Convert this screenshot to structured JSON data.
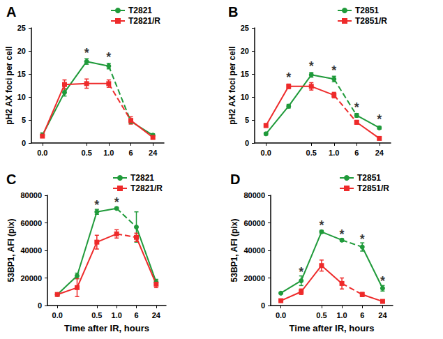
{
  "chart_data": [
    {
      "type": "line",
      "title": "A",
      "y_label": "pH2 AX foci per cell",
      "categories": [
        "0.0",
        null,
        "0.5",
        "1.0",
        "6",
        "24"
      ],
      "series": [
        {
          "name": "T2821",
          "color": "#1f9a3a",
          "marker": "circle",
          "line_style": "solid",
          "values": [
            1.7,
            11,
            17.7,
            16.7,
            4.7,
            1.7
          ],
          "errors": [
            0.5,
            0.8,
            0.6,
            0.6,
            0.5,
            0.3
          ]
        },
        {
          "name": "T2821/R",
          "color": "#ee2a2a",
          "marker": "square",
          "line_style": "solid",
          "values": [
            1.5,
            12.7,
            12.9,
            12.9,
            4.9,
            1.2
          ],
          "errors": [
            0.3,
            1.0,
            1.0,
            0.8,
            0.8,
            0.3
          ]
        }
      ],
      "ylim": [
        0,
        25
      ],
      "yticks": [
        0,
        5,
        10,
        15,
        20,
        25
      ],
      "grid": false,
      "legend": "upper right",
      "annotations": [
        {
          "text": "*",
          "index": 2,
          "y": 19.5
        },
        {
          "text": "*",
          "index": 3,
          "y": 18.6
        }
      ]
    },
    {
      "type": "line",
      "title": "B",
      "y_label": "pH2 AX foci per cell",
      "categories": [
        "0.0",
        null,
        "0.5",
        "1.0",
        "6",
        "24"
      ],
      "series": [
        {
          "name": "T2851",
          "color": "#1f9a3a",
          "marker": "circle",
          "line_style": "solid",
          "values": [
            2.0,
            8.0,
            14.8,
            13.9,
            6.0,
            3.3
          ],
          "errors": [
            0.3,
            0.4,
            0.5,
            0.6,
            0.4,
            0.3
          ]
        },
        {
          "name": "T2851/R",
          "color": "#ee2a2a",
          "marker": "square",
          "line_style": "solid",
          "values": [
            3.8,
            12.3,
            12.3,
            10.4,
            4.5,
            1.0
          ],
          "errors": [
            0.4,
            0.5,
            0.8,
            0.6,
            0.4,
            0.3
          ]
        }
      ],
      "ylim": [
        0,
        25
      ],
      "yticks": [
        0,
        5,
        10,
        15,
        20,
        25
      ],
      "grid": false,
      "legend": "upper right",
      "annotations": [
        {
          "text": "*",
          "index": 1,
          "y": 14.3
        },
        {
          "text": "*",
          "index": 2,
          "y": 16.6
        },
        {
          "text": "*",
          "index": 3,
          "y": 15.8
        },
        {
          "text": "*",
          "index": 4,
          "y": 7.7
        },
        {
          "text": "*",
          "index": 5,
          "y": 5.2
        }
      ]
    },
    {
      "type": "line",
      "title": "C",
      "y_label": "53BP1, AFI (pix)",
      "x_label": "Time after IR, hours",
      "categories": [
        "0.0",
        null,
        "0.5",
        "1.0",
        "6",
        "24"
      ],
      "series": [
        {
          "name": "T2821",
          "color": "#1f9a3a",
          "marker": "circle",
          "line_style": "solid",
          "values": [
            8000,
            21500,
            68000,
            70500,
            57000,
            17000
          ],
          "errors": [
            500,
            2000,
            1800,
            800,
            11000,
            2000
          ]
        },
        {
          "name": "T2821/R",
          "color": "#ee2a2a",
          "marker": "square",
          "line_style": "solid",
          "values": [
            8000,
            13000,
            46000,
            52000,
            49500,
            15500
          ],
          "errors": [
            500,
            6500,
            5000,
            3000,
            3000,
            2500
          ]
        }
      ],
      "ylim": [
        0,
        80000
      ],
      "yticks": [
        0,
        20000,
        40000,
        60000,
        80000
      ],
      "grid": false,
      "legend": "upper right",
      "annotations": [
        {
          "text": "*",
          "index": 2,
          "y": 73000
        },
        {
          "text": "*",
          "index": 3,
          "y": 75000
        }
      ]
    },
    {
      "type": "line",
      "title": "D",
      "y_label": "53BP1, AFI (pix)",
      "x_label": "Time after IR, hours",
      "categories": [
        "0.0",
        null,
        "0.5",
        "1.0",
        "6",
        "24"
      ],
      "series": [
        {
          "name": "T2851",
          "color": "#1f9a3a",
          "marker": "circle",
          "line_style": "solid",
          "values": [
            9000,
            18000,
            53500,
            47500,
            42500,
            12500
          ],
          "errors": [
            500,
            3500,
            1000,
            1000,
            3000,
            2000
          ]
        },
        {
          "name": "T2851/R",
          "color": "#ee2a2a",
          "marker": "square",
          "line_style": "solid",
          "values": [
            3500,
            10000,
            29000,
            16000,
            8000,
            3000
          ],
          "errors": [
            500,
            2000,
            4000,
            4000,
            1500,
            1000
          ]
        }
      ],
      "ylim": [
        0,
        80000
      ],
      "yticks": [
        0,
        20000,
        40000,
        60000,
        80000
      ],
      "grid": false,
      "legend": "upper right",
      "annotations": [
        {
          "text": "*",
          "index": 1,
          "y": 24500
        },
        {
          "text": "*",
          "index": 2,
          "y": 58000
        },
        {
          "text": "*",
          "index": 3,
          "y": 51500
        },
        {
          "text": "*",
          "index": 4,
          "y": 48000
        },
        {
          "text": "*",
          "index": 5,
          "y": 17500
        }
      ]
    }
  ]
}
